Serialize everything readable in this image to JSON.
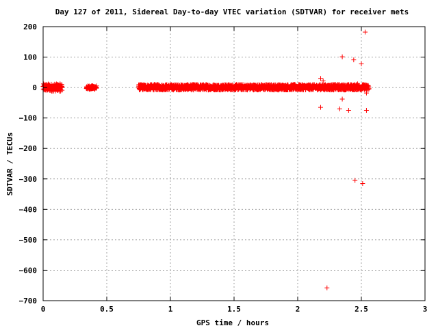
{
  "chart_data": {
    "type": "scatter",
    "title": "Day 127 of 2011, Sidereal Day-to-day VTEC variation (SDTVAR) for receiver mets",
    "xlabel": "GPS time / hours",
    "ylabel": "SDTVAR / TECUs",
    "xlim": [
      0,
      3
    ],
    "ylim": [
      -700,
      200
    ],
    "xticks": [
      0,
      0.5,
      1,
      1.5,
      2,
      2.5,
      3
    ],
    "xtick_labels": [
      "0",
      "0.5",
      "1",
      "1.5",
      "2",
      "2.5",
      "3"
    ],
    "yticks": [
      200,
      100,
      0,
      -100,
      -200,
      -300,
      -400,
      -500,
      -600,
      -700
    ],
    "ytick_labels": [
      "200",
      "100",
      "0",
      "−100",
      "−200",
      "−300",
      "−400",
      "−500",
      "−600",
      "−700"
    ],
    "grid": true,
    "marker": "+",
    "marker_color": "#ff0000",
    "dense_bands": [
      {
        "x_start": 0.0,
        "x_end": 0.15,
        "y_min": -12,
        "y_max": 12
      },
      {
        "x_start": 0.34,
        "x_end": 0.42,
        "y_min": -6,
        "y_max": 6
      },
      {
        "x_start": 0.75,
        "x_end": 2.56,
        "y_min": -8,
        "y_max": 10
      }
    ],
    "outliers": [
      {
        "x": 2.18,
        "y": 30
      },
      {
        "x": 2.2,
        "y": 22
      },
      {
        "x": 2.18,
        "y": -65
      },
      {
        "x": 2.23,
        "y": -658
      },
      {
        "x": 2.33,
        "y": -70
      },
      {
        "x": 2.35,
        "y": 101
      },
      {
        "x": 2.35,
        "y": -38
      },
      {
        "x": 2.4,
        "y": -75
      },
      {
        "x": 2.44,
        "y": 91
      },
      {
        "x": 2.45,
        "y": -305
      },
      {
        "x": 2.47,
        "y": 12
      },
      {
        "x": 2.5,
        "y": 78
      },
      {
        "x": 2.51,
        "y": -315
      },
      {
        "x": 2.53,
        "y": 182
      },
      {
        "x": 2.54,
        "y": -75
      },
      {
        "x": 2.54,
        "y": -18
      }
    ]
  }
}
